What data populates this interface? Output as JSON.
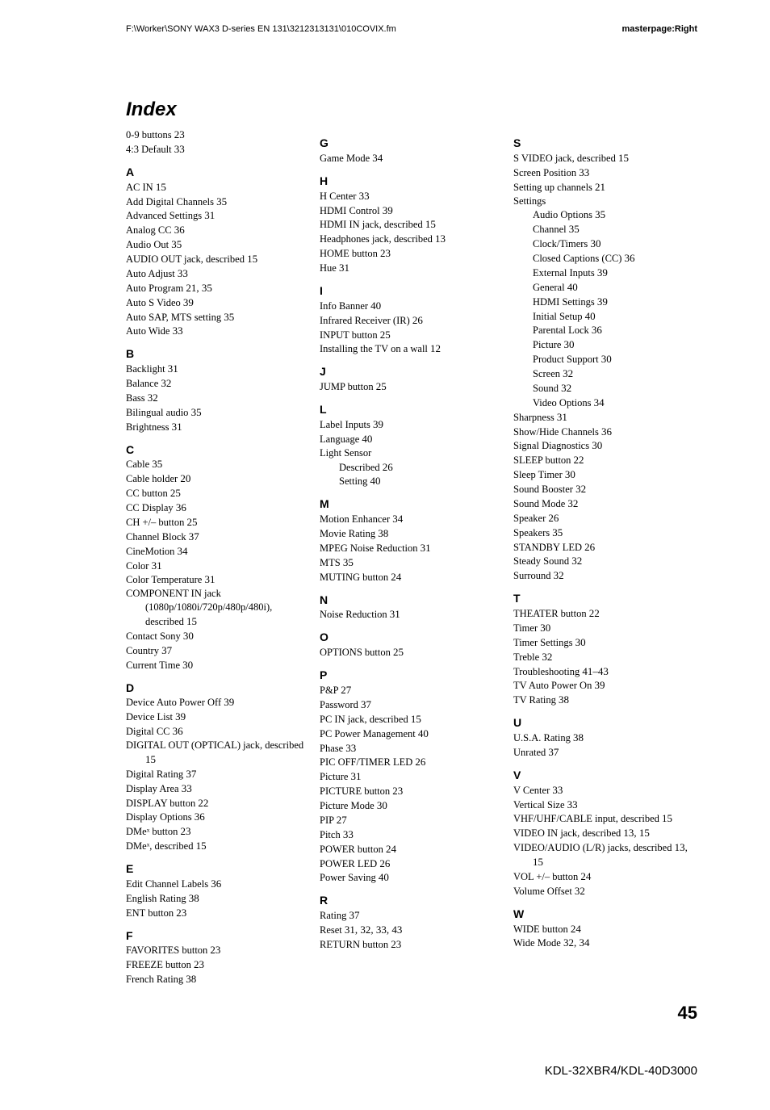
{
  "header": {
    "path": "F:\\Worker\\SONY WAX3 D-series EN 131\\3212313131\\010COVIX.fm",
    "masterpage": "masterpage:Right"
  },
  "title": "Index",
  "pageNumber": "45",
  "footer": "KDL-32XBR4/KDL-40D3000",
  "col1": {
    "pre": [
      {
        "t": "0-9 buttons",
        "p": "23"
      },
      {
        "t": "4:3 Default",
        "p": "33"
      }
    ],
    "A": [
      {
        "t": "AC IN",
        "p": "15"
      },
      {
        "t": "Add Digital Channels",
        "p": "35"
      },
      {
        "t": "Advanced Settings",
        "p": "31"
      },
      {
        "t": "Analog CC",
        "p": "36"
      },
      {
        "t": "Audio Out",
        "p": "35"
      },
      {
        "t": "AUDIO OUT jack, described",
        "p": "15"
      },
      {
        "t": "Auto Adjust",
        "p": "33"
      },
      {
        "t": "Auto Program",
        "p": "21, 35"
      },
      {
        "t": "Auto S Video",
        "p": "39"
      },
      {
        "t": "Auto SAP, MTS setting",
        "p": "35"
      },
      {
        "t": "Auto Wide",
        "p": "33"
      }
    ],
    "B": [
      {
        "t": "Backlight",
        "p": "31"
      },
      {
        "t": "Balance",
        "p": "32"
      },
      {
        "t": "Bass",
        "p": "32"
      },
      {
        "t": "Bilingual audio",
        "p": "35"
      },
      {
        "t": "Brightness",
        "p": "31"
      }
    ],
    "C": [
      {
        "t": "Cable",
        "p": "35"
      },
      {
        "t": "Cable holder",
        "p": "20"
      },
      {
        "t": "CC button",
        "p": "25"
      },
      {
        "t": "CC Display",
        "p": "36"
      },
      {
        "t": "CH +/– button",
        "p": "25"
      },
      {
        "t": "Channel Block",
        "p": "37"
      },
      {
        "t": "CineMotion",
        "p": "34"
      },
      {
        "t": "Color",
        "p": "31"
      },
      {
        "t": "Color Temperature",
        "p": "31"
      },
      {
        "t": "COMPONENT IN jack (1080p/1080i/720p/480p/480i), described",
        "p": "15",
        "wrap": true
      },
      {
        "t": "Contact Sony",
        "p": "30"
      },
      {
        "t": "Country",
        "p": "37"
      },
      {
        "t": "Current Time",
        "p": "30"
      }
    ],
    "D": [
      {
        "t": "Device Auto Power Off",
        "p": "39"
      },
      {
        "t": "Device List",
        "p": "39"
      },
      {
        "t": "Digital CC",
        "p": "36"
      },
      {
        "t": "DIGITAL OUT (OPTICAL) jack, described",
        "p": "15",
        "wrap": true
      },
      {
        "t": "Digital Rating",
        "p": "37"
      },
      {
        "t": "Display Area",
        "p": "33"
      },
      {
        "t": "DISPLAY button",
        "p": "22"
      },
      {
        "t": "Display Options",
        "p": "36"
      },
      {
        "t": "DMeˣ button",
        "p": "23"
      },
      {
        "t": "DMeˣ, described",
        "p": "15"
      }
    ],
    "E": [
      {
        "t": "Edit Channel Labels",
        "p": "36"
      },
      {
        "t": "English Rating",
        "p": "38"
      },
      {
        "t": "ENT button",
        "p": "23"
      }
    ],
    "F": [
      {
        "t": "FAVORITES button",
        "p": "23"
      },
      {
        "t": "FREEZE button",
        "p": "23"
      },
      {
        "t": "French Rating",
        "p": "38"
      }
    ]
  },
  "col2": {
    "G": [
      {
        "t": "Game Mode",
        "p": "34"
      }
    ],
    "H": [
      {
        "t": "H Center",
        "p": "33"
      },
      {
        "t": "HDMI Control",
        "p": "39"
      },
      {
        "t": "HDMI IN jack, described",
        "p": "15"
      },
      {
        "t": "Headphones jack, described",
        "p": "13"
      },
      {
        "t": "HOME button",
        "p": "23"
      },
      {
        "t": "Hue",
        "p": "31"
      }
    ],
    "I": [
      {
        "t": "Info Banner",
        "p": "40"
      },
      {
        "t": "Infrared Receiver (IR)",
        "p": "26"
      },
      {
        "t": "INPUT button",
        "p": "25"
      },
      {
        "t": "Installing the TV on a wall",
        "p": "12"
      }
    ],
    "J": [
      {
        "t": "JUMP button",
        "p": "25"
      }
    ],
    "L": [
      {
        "t": "Label Inputs",
        "p": "39"
      },
      {
        "t": "Language",
        "p": "40"
      },
      {
        "t": "Light Sensor",
        "p": ""
      },
      {
        "t": "Described",
        "p": "26",
        "sub": true
      },
      {
        "t": "Setting",
        "p": "40",
        "sub": true
      }
    ],
    "M": [
      {
        "t": "Motion Enhancer",
        "p": "34"
      },
      {
        "t": "Movie Rating",
        "p": "38"
      },
      {
        "t": "MPEG Noise Reduction",
        "p": "31"
      },
      {
        "t": "MTS",
        "p": "35"
      },
      {
        "t": "MUTING button",
        "p": "24"
      }
    ],
    "N": [
      {
        "t": "Noise Reduction",
        "p": "31"
      }
    ],
    "O": [
      {
        "t": "OPTIONS button",
        "p": "25"
      }
    ],
    "P": [
      {
        "t": "P&P",
        "p": "27"
      },
      {
        "t": "Password",
        "p": "37"
      },
      {
        "t": "PC IN jack, described",
        "p": "15"
      },
      {
        "t": "PC Power Management",
        "p": "40"
      },
      {
        "t": "Phase",
        "p": "33"
      },
      {
        "t": "PIC OFF/TIMER LED",
        "p": "26"
      },
      {
        "t": "Picture",
        "p": "31"
      },
      {
        "t": "PICTURE button",
        "p": "23"
      },
      {
        "t": "Picture Mode",
        "p": "30"
      },
      {
        "t": "PIP",
        "p": "27"
      },
      {
        "t": "Pitch",
        "p": "33"
      },
      {
        "t": "POWER button",
        "p": "24"
      },
      {
        "t": "POWER LED",
        "p": "26"
      },
      {
        "t": "Power Saving",
        "p": "40"
      }
    ],
    "R": [
      {
        "t": "Rating",
        "p": "37"
      },
      {
        "t": "Reset",
        "p": "31, 32, 33, 43"
      },
      {
        "t": "RETURN button",
        "p": "23"
      }
    ]
  },
  "col3": {
    "S": [
      {
        "t": "S VIDEO jack, described",
        "p": "15"
      },
      {
        "t": "Screen Position",
        "p": "33"
      },
      {
        "t": "Setting up channels",
        "p": "21"
      },
      {
        "t": "Settings",
        "p": ""
      },
      {
        "t": "Audio Options",
        "p": "35",
        "sub": true
      },
      {
        "t": "Channel",
        "p": "35",
        "sub": true
      },
      {
        "t": "Clock/Timers",
        "p": "30",
        "sub": true
      },
      {
        "t": "Closed Captions (CC)",
        "p": "36",
        "sub": true
      },
      {
        "t": "External Inputs",
        "p": "39",
        "sub": true
      },
      {
        "t": "General",
        "p": "40",
        "sub": true
      },
      {
        "t": "HDMI Settings",
        "p": "39",
        "sub": true
      },
      {
        "t": "Initial Setup",
        "p": "40",
        "sub": true
      },
      {
        "t": "Parental Lock",
        "p": "36",
        "sub": true
      },
      {
        "t": "Picture",
        "p": "30",
        "sub": true
      },
      {
        "t": "Product Support",
        "p": "30",
        "sub": true
      },
      {
        "t": "Screen",
        "p": "32",
        "sub": true
      },
      {
        "t": "Sound",
        "p": "32",
        "sub": true
      },
      {
        "t": "Video Options",
        "p": "34",
        "sub": true
      },
      {
        "t": "Sharpness",
        "p": "31"
      },
      {
        "t": "Show/Hide Channels",
        "p": "36"
      },
      {
        "t": "Signal Diagnostics",
        "p": "30"
      },
      {
        "t": "SLEEP button",
        "p": "22"
      },
      {
        "t": "Sleep Timer",
        "p": "30"
      },
      {
        "t": "Sound Booster",
        "p": "32"
      },
      {
        "t": "Sound Mode",
        "p": "32"
      },
      {
        "t": "Speaker",
        "p": "26"
      },
      {
        "t": "Speakers",
        "p": "35"
      },
      {
        "t": "STANDBY LED",
        "p": "26"
      },
      {
        "t": "Steady Sound",
        "p": "32"
      },
      {
        "t": "Surround",
        "p": "32"
      }
    ],
    "T": [
      {
        "t": "THEATER button",
        "p": "22"
      },
      {
        "t": "Timer",
        "p": "30"
      },
      {
        "t": "Timer Settings",
        "p": "30"
      },
      {
        "t": "Treble",
        "p": "32"
      },
      {
        "t": "Troubleshooting",
        "p": "41–43"
      },
      {
        "t": "TV Auto Power On",
        "p": "39"
      },
      {
        "t": "TV Rating",
        "p": "38"
      }
    ],
    "U": [
      {
        "t": "U.S.A. Rating",
        "p": "38"
      },
      {
        "t": "Unrated",
        "p": "37"
      }
    ],
    "V": [
      {
        "t": "V Center",
        "p": "33"
      },
      {
        "t": "Vertical Size",
        "p": "33"
      },
      {
        "t": "VHF/UHF/CABLE input, described",
        "p": "15"
      },
      {
        "t": "VIDEO IN jack, described",
        "p": "13, 15"
      },
      {
        "t": "VIDEO/AUDIO (L/R) jacks, described",
        "p": "13, 15",
        "wrap": true
      },
      {
        "t": "VOL +/– button",
        "p": "24"
      },
      {
        "t": "Volume Offset",
        "p": "32"
      }
    ],
    "W": [
      {
        "t": "WIDE button",
        "p": "24"
      },
      {
        "t": "Wide Mode",
        "p": "32, 34"
      }
    ]
  }
}
